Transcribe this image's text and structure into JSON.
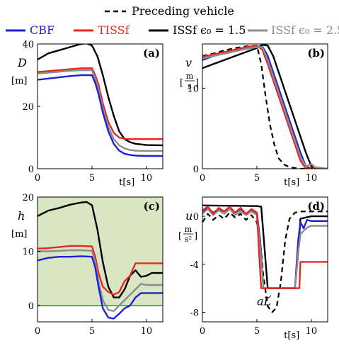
{
  "legend": {
    "top": "Preceding vehicle",
    "items": [
      {
        "label": "CBF",
        "color": "#1f1fd6",
        "label_color": "#1f1fd6"
      },
      {
        "label": "TISSf",
        "color": "#e8281e",
        "label_color": "#e8281e"
      },
      {
        "label": "ISSf ϵ₀ = 1.5",
        "color": "#000000",
        "label_color": "#000000"
      },
      {
        "label": "ISSf ϵ₀ = 2.5",
        "color": "#8c8c8c",
        "label_color": "#8c8c8c"
      }
    ]
  },
  "colors": {
    "cbf": "#1f1fd6",
    "tissf": "#e8281e",
    "issf15": "#000000",
    "issf25": "#8c8c8c",
    "lead": "#000000",
    "safe_fill": "#d9e6c3",
    "zero_line": "#6aa84f"
  },
  "chart_data": [
    {
      "type": "line",
      "panel_label": "(a)",
      "ylabel": "D",
      "yunit": "[m]",
      "xlabel": "t[s]",
      "xlim": [
        0,
        11.5
      ],
      "ylim": [
        0,
        40
      ],
      "xticks": [
        "0",
        "5",
        "10"
      ],
      "yticks": [
        "0",
        "20",
        "40"
      ],
      "x_ticks_values": [
        0,
        5,
        10
      ],
      "y_ticks_values": [
        0,
        20,
        40
      ],
      "series": [
        {
          "key": "issf15",
          "x": [
            0,
            1,
            2,
            3,
            4,
            4.5,
            5,
            5.5,
            6,
            6.5,
            7,
            7.5,
            8,
            8.5,
            9,
            10,
            11.5
          ],
          "y": [
            35,
            37,
            38,
            39,
            40,
            40.2,
            39.5,
            36,
            30,
            23,
            17,
            12,
            9.5,
            8.5,
            8,
            7.6,
            7.5
          ]
        },
        {
          "key": "tissf",
          "x": [
            0,
            1,
            2,
            3,
            4,
            5,
            5.3,
            5.6,
            6,
            6.5,
            7,
            7.5,
            8,
            8.5,
            9,
            10,
            11.5
          ],
          "y": [
            31,
            31.3,
            31.6,
            31.9,
            32.2,
            32.2,
            30,
            27,
            21,
            15,
            11.5,
            10,
            9.6,
            9.5,
            9.5,
            9.5,
            9.5
          ]
        },
        {
          "key": "issf25",
          "x": [
            0,
            1,
            2,
            3,
            4,
            5,
            5.3,
            5.6,
            6,
            6.5,
            7,
            7.5,
            8,
            8.5,
            9,
            10,
            11.5
          ],
          "y": [
            30.5,
            30.8,
            31.1,
            31.4,
            31.6,
            31.6,
            29,
            25.5,
            19.5,
            13.5,
            9.5,
            7.5,
            6.5,
            6,
            5.8,
            5.7,
            5.7
          ]
        },
        {
          "key": "cbf",
          "x": [
            0,
            1,
            2,
            3,
            4,
            5,
            5.3,
            5.6,
            6,
            6.5,
            7,
            7.5,
            8,
            8.5,
            9,
            10,
            11.5
          ],
          "y": [
            28.5,
            28.9,
            29.3,
            29.7,
            30,
            30,
            27.5,
            24,
            18,
            12,
            8,
            5.8,
            4.8,
            4.4,
            4.2,
            4.1,
            4.1
          ]
        }
      ]
    },
    {
      "type": "line",
      "panel_label": "(b)",
      "ylabel": "v",
      "yunit": "m/s",
      "xlabel": "t[s]",
      "xlim": [
        0,
        11.5
      ],
      "ylim": [
        0,
        15.5
      ],
      "xticks": [
        "0",
        "5",
        "10"
      ],
      "yticks": [
        "0",
        "10"
      ],
      "x_ticks_values": [
        0,
        5,
        10
      ],
      "y_ticks_values": [
        0,
        10
      ],
      "series": [
        {
          "key": "lead",
          "dashed": true,
          "x": [
            0,
            1,
            2,
            3,
            4,
            5,
            5.4,
            5.8,
            6.2,
            6.6,
            7,
            7.5,
            8,
            8.5,
            9,
            11.5
          ],
          "y": [
            14,
            14.3,
            14.7,
            15,
            15.2,
            15.3,
            13,
            9,
            5.5,
            3,
            1.3,
            0.5,
            0.2,
            0.1,
            0,
            0
          ]
        },
        {
          "key": "issf15",
          "x": [
            0,
            1,
            2,
            3,
            4,
            5,
            5.5,
            6,
            6.5,
            7,
            7.5,
            8,
            8.5,
            9,
            9.5,
            10,
            10.5,
            11.5
          ],
          "y": [
            12.5,
            13,
            13.5,
            14,
            14.5,
            15,
            15.4,
            15.3,
            14,
            12,
            10,
            8,
            6,
            4,
            2,
            0.3,
            0,
            0
          ]
        },
        {
          "key": "cbf",
          "x": [
            0,
            1,
            2,
            3,
            4,
            5,
            5.5,
            6,
            6.5,
            7,
            7.5,
            8,
            8.5,
            9,
            9.5,
            10,
            11.5
          ],
          "y": [
            13.5,
            14,
            14.3,
            14.6,
            14.9,
            15.1,
            15.2,
            14,
            12,
            10,
            8,
            6,
            4,
            2,
            0.3,
            0,
            0
          ]
        },
        {
          "key": "tissf",
          "x": [
            0,
            1,
            2,
            3,
            4,
            5,
            5.5,
            6,
            6.5,
            7,
            7.5,
            8,
            8.5,
            9,
            9.5,
            10,
            11.5
          ],
          "y": [
            13.9,
            14.2,
            14.5,
            14.8,
            15.1,
            15.3,
            14.8,
            13,
            11,
            9,
            7,
            5,
            3,
            1,
            0,
            0,
            0
          ]
        },
        {
          "key": "issf25",
          "x": [
            0,
            1,
            2,
            3,
            4,
            5,
            5.5,
            6,
            6.5,
            7,
            7.5,
            8,
            8.5,
            9,
            9.5,
            10,
            10.3,
            11.5
          ],
          "y": [
            13.7,
            14,
            14.3,
            14.6,
            14.9,
            15.1,
            15.1,
            13.5,
            11.5,
            9.5,
            7.5,
            5.5,
            3.5,
            1.5,
            0.3,
            0.6,
            0.2,
            0
          ]
        }
      ]
    },
    {
      "type": "line",
      "panel_label": "(c)",
      "ylabel": "h",
      "yunit": "[m]",
      "xlabel": "",
      "xlim": [
        0,
        11.5
      ],
      "ylim": [
        -3,
        20
      ],
      "xticks": [
        "0",
        "5",
        "10"
      ],
      "yticks": [
        "0",
        "10",
        "20"
      ],
      "x_ticks_values": [
        0,
        5,
        10
      ],
      "y_ticks_values": [
        0,
        10,
        20
      ],
      "safe_region_above": 0,
      "series": [
        {
          "key": "issf15",
          "x": [
            0,
            1,
            2,
            3,
            4,
            4.5,
            5,
            5.5,
            6,
            6.5,
            7,
            7.5,
            8,
            8.5,
            9,
            9.5,
            10,
            10.5,
            11.5
          ],
          "y": [
            16.5,
            17.5,
            18,
            18.6,
            19,
            19.1,
            18.5,
            14,
            8,
            3.5,
            1.5,
            1.5,
            3,
            5.5,
            6.5,
            5.3,
            5.5,
            6,
            6
          ]
        },
        {
          "key": "tissf",
          "x": [
            0,
            1,
            2,
            3,
            4,
            5,
            5.3,
            5.6,
            6,
            6.5,
            7,
            7.5,
            8,
            8.5,
            9,
            9.5,
            11.5
          ],
          "y": [
            10.5,
            10.6,
            10.8,
            11,
            11,
            10.9,
            9,
            6,
            3.5,
            2.5,
            2,
            2.5,
            4.5,
            5.5,
            7.8,
            7.8,
            7.8
          ]
        },
        {
          "key": "issf25",
          "x": [
            0,
            1,
            2,
            3,
            4,
            5,
            5.3,
            5.6,
            6,
            6.5,
            7,
            7.5,
            8,
            8.5,
            9,
            9.5,
            10,
            11.5
          ],
          "y": [
            10,
            10,
            10.1,
            10.2,
            10.2,
            10.1,
            8,
            4.5,
            1,
            -0.8,
            -1,
            0,
            1,
            2,
            3,
            4,
            3.8,
            3.8
          ]
        },
        {
          "key": "cbf",
          "x": [
            0,
            1,
            2,
            3,
            4,
            5,
            5.3,
            5.6,
            6,
            6.5,
            7,
            7.5,
            8,
            8.5,
            9,
            9.5,
            10,
            11.5
          ],
          "y": [
            8.3,
            8.8,
            9,
            9,
            9.1,
            9,
            7,
            3.5,
            -0.5,
            -2.2,
            -2.4,
            -1.5,
            -0.5,
            0,
            1.5,
            2.3,
            2.3,
            2.3
          ]
        }
      ]
    },
    {
      "type": "line",
      "panel_label": "(d)",
      "ylabel": "u",
      "yunit": "m/s²",
      "xlabel": "t[s]",
      "xlim": [
        0,
        11.5
      ],
      "ylim": [
        -8.8,
        1.6
      ],
      "xticks": [
        "0",
        "5",
        "10"
      ],
      "yticks": [
        "0",
        "-4",
        "-8"
      ],
      "x_ticks_values": [
        0,
        5,
        10
      ],
      "y_ticks_values": [
        0,
        -4,
        -8
      ],
      "annotation": "aL",
      "series": [
        {
          "key": "lead",
          "dashed": true,
          "x": [
            0,
            0.5,
            1,
            1.5,
            2,
            2.5,
            3,
            3.5,
            4,
            4.5,
            5,
            5.3,
            5.6,
            6,
            6.4,
            6.8,
            7.2,
            7.6,
            8,
            8.5,
            9,
            9.5,
            10,
            11.5
          ],
          "y": [
            -0.5,
            0.2,
            -0.3,
            0.1,
            -0.2,
            0.3,
            -0.1,
            0.2,
            -0.3,
            0.1,
            -0.5,
            -2,
            -5,
            -7.5,
            -8,
            -7.6,
            -5.5,
            -2,
            -0.2,
            0.3,
            0.4,
            0.4,
            0.4,
            0.4
          ]
        },
        {
          "key": "issf15",
          "x": [
            0,
            5,
            5.4,
            6,
            6.5,
            7,
            8,
            8.5,
            8.8,
            9,
            10,
            11.5
          ],
          "y": [
            0.9,
            0.85,
            0.8,
            -6,
            -6,
            -6,
            -6,
            -6,
            -3,
            -0.2,
            0,
            0
          ]
        },
        {
          "key": "cbf",
          "x": [
            0,
            0.5,
            1,
            1.5,
            2,
            2.5,
            3,
            3.5,
            4,
            4.5,
            5,
            5.3,
            5.6,
            6,
            7,
            8,
            8.5,
            8.8,
            9,
            9.3,
            9.6,
            10,
            11.5
          ],
          "y": [
            0.4,
            0.7,
            0.3,
            0.6,
            0.4,
            0.7,
            0.3,
            0.6,
            0.2,
            0.5,
            0.3,
            -2,
            -6,
            -6,
            -6,
            -6,
            -6,
            -2,
            -0.5,
            -1,
            -0.3,
            -0.4,
            -0.4
          ]
        },
        {
          "key": "issf25",
          "x": [
            0,
            0.5,
            1,
            1.5,
            2,
            2.5,
            3,
            3.5,
            4,
            4.5,
            5,
            5.3,
            5.6,
            6,
            7,
            8,
            8.5,
            8.8,
            9,
            9.3,
            9.7,
            10,
            11.5
          ],
          "y": [
            0.2,
            0.6,
            0.1,
            0.5,
            0.2,
            0.6,
            0.1,
            0.4,
            0.1,
            0.4,
            0.1,
            -2.5,
            -6,
            -6,
            -6,
            -6,
            -6,
            -3,
            -1.5,
            -1.2,
            -0.9,
            -0.8,
            -0.8
          ]
        },
        {
          "key": "tissf",
          "x": [
            0,
            0.5,
            1,
            1.5,
            2,
            2.5,
            3,
            3.5,
            4,
            4.5,
            5,
            5.2,
            5.4,
            6,
            7,
            7.5,
            8,
            8.5,
            8.9,
            9,
            9.5,
            11.5
          ],
          "y": [
            0.5,
            0.8,
            0.2,
            0.7,
            0.4,
            0.8,
            0.3,
            0.7,
            0.2,
            0.6,
            0.3,
            -3,
            -6,
            -6,
            -6,
            -6,
            -6,
            -6,
            -6,
            -3.8,
            -3.8,
            -3.8
          ]
        }
      ]
    }
  ]
}
